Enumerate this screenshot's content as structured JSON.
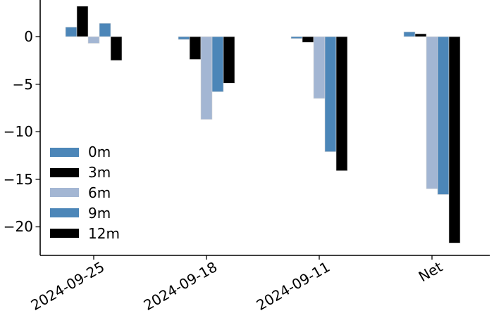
{
  "chart_data": {
    "type": "bar",
    "title": "",
    "xlabel": "",
    "ylabel": "",
    "categories": [
      "2024-09-25",
      "2024-09-18",
      "2024-09-11",
      "Net"
    ],
    "series": [
      {
        "name": "0m",
        "color": "#4c86b8",
        "values": [
          1.0,
          -0.3,
          -0.2,
          0.5
        ]
      },
      {
        "name": "3m",
        "color": "#000000",
        "values": [
          3.2,
          -2.4,
          -0.6,
          0.3
        ]
      },
      {
        "name": "6m",
        "color": "#a3b6d3",
        "values": [
          -0.7,
          -8.7,
          -6.5,
          -16.0
        ]
      },
      {
        "name": "9m",
        "color": "#4c86b8",
        "values": [
          1.4,
          -5.8,
          -12.1,
          -16.6
        ]
      },
      {
        "name": "12m",
        "color": "#000000",
        "values": [
          -2.5,
          -4.9,
          -14.1,
          -21.7
        ]
      }
    ],
    "ylim": [
      -23,
      3.85
    ],
    "y_ticks": [
      0,
      -5,
      -10,
      -15,
      -20
    ],
    "y_tick_labels": [
      "0",
      "−5",
      "−10",
      "−15",
      "−20"
    ],
    "legend": {
      "position": "lower left",
      "entries": [
        "0m",
        "3m",
        "6m",
        "9m",
        "12m"
      ]
    },
    "grid": false,
    "background_color": "#ffffff",
    "axis_color": "#000000"
  }
}
